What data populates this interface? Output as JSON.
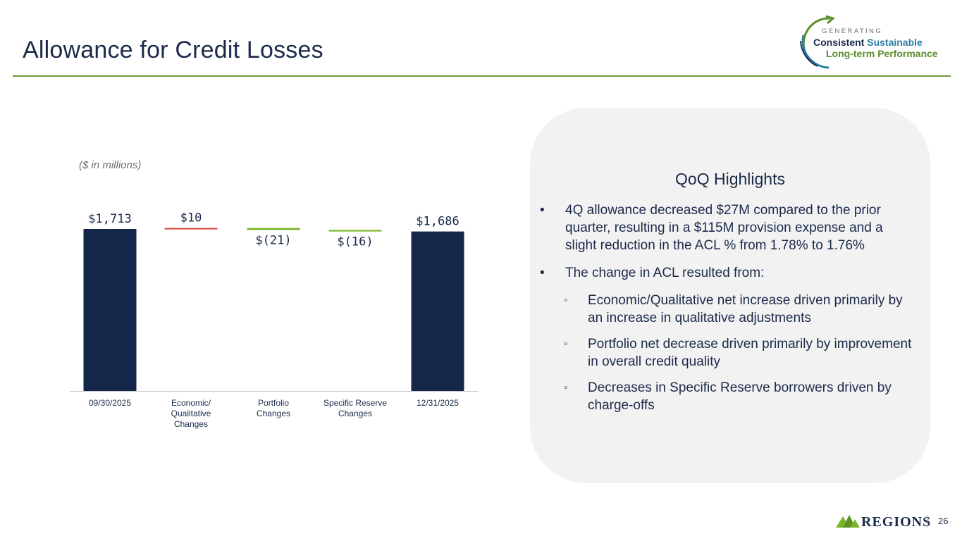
{
  "slide": {
    "title": "Allowance for Credit Losses",
    "units_note": "($ in millions)",
    "page_number": "26"
  },
  "logo": {
    "line_top": "GENERATING",
    "line1_a": "Consistent",
    "line1_b": "Sustainable",
    "line2": "Long-term Performance"
  },
  "brand": {
    "name": "REGIONS",
    "colors": {
      "navy": "#14274a",
      "green": "#7ab527",
      "red": "#d9473b",
      "title": "#1b2a4a",
      "rule": "#6f9a37"
    }
  },
  "chart_data": {
    "type": "bar",
    "subtype": "waterfall",
    "categories": [
      "09/30/2025",
      "Economic/ Qualitative Changes",
      "Portfolio Changes",
      "Specific Reserve Changes",
      "12/31/2025"
    ],
    "category_lines": [
      [
        "09/30/2025"
      ],
      [
        "Economic/",
        "Qualitative",
        "Changes"
      ],
      [
        "Portfolio",
        "Changes"
      ],
      [
        "Specific Reserve",
        "Changes"
      ],
      [
        "12/31/2025"
      ]
    ],
    "values": [
      1713,
      10,
      -21,
      -16,
      1686
    ],
    "kinds": [
      "total",
      "increase",
      "decrease",
      "decrease",
      "total"
    ],
    "data_labels": [
      "$1,713",
      "$10",
      "$(21)",
      "$(16)",
      "$1,686"
    ],
    "colors": {
      "total": "#14274a",
      "increase": "#d9473b",
      "decrease": "#7ab527"
    },
    "grid": false,
    "legend": "none"
  },
  "highlights": {
    "title": "QoQ Highlights",
    "bullets": [
      {
        "text": "4Q allowance decreased $27M compared to the prior quarter, resulting in a $115M provision expense and a slight reduction in the  ACL % from 1.78% to 1.76%"
      },
      {
        "text": "The change in ACL resulted from:",
        "sub": [
          "Economic/Qualitative net increase driven primarily by an increase in qualitative adjustments",
          "Portfolio net decrease driven primarily by improvement in overall credit quality",
          "Decreases in Specific Reserve borrowers driven by charge-offs"
        ]
      }
    ]
  }
}
